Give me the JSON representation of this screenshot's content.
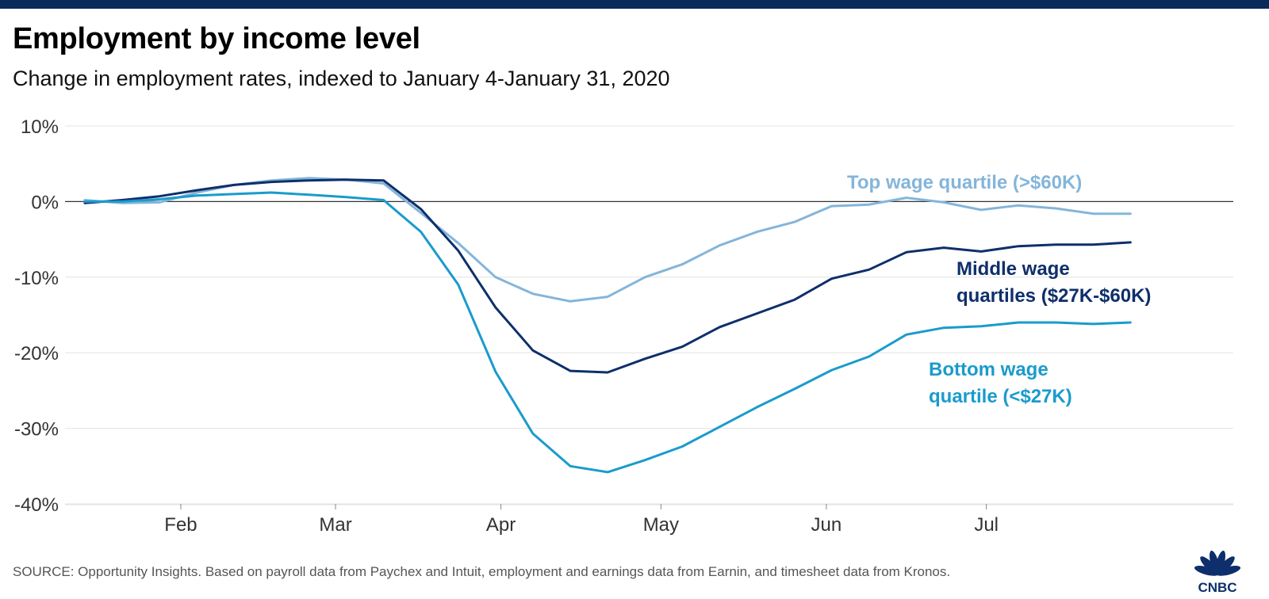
{
  "header": {
    "title": "Employment by income level",
    "subtitle": "Change in employment rates, indexed to January 4-January 31, 2020"
  },
  "footer": {
    "source": "SOURCE: Opportunity Insights. Based on payroll data from Paychex and Intuit, employment and earnings data from Earnin, and timesheet data from Kronos.",
    "logo_text": "CNBC"
  },
  "colors": {
    "top_bar": "#0b2a5c",
    "top_series": "#84b5da",
    "middle_series": "#0e2f6b",
    "bottom_series": "#1a9bcc",
    "grid": "#e3e3e3",
    "zero_line": "#333333"
  },
  "chart_data": {
    "type": "line",
    "title": "Employment by income level",
    "subtitle": "Change in employment rates, indexed to January 4-January 31, 2020",
    "xlabel": "",
    "ylabel": "",
    "x_tick_labels": [
      "Feb",
      "Mar",
      "Apr",
      "May",
      "Jun",
      "Jul"
    ],
    "x_tick_dates": [
      "2020-02-01",
      "2020-03-01",
      "2020-04-01",
      "2020-05-01",
      "2020-06-01",
      "2020-07-01"
    ],
    "xlim": [
      "2020-01-10",
      "2020-08-20"
    ],
    "y_tick_labels": [
      "10%",
      "0%",
      "-10%",
      "-20%",
      "-30%",
      "-40%"
    ],
    "y_ticks": [
      10,
      0,
      -10,
      -20,
      -30,
      -40
    ],
    "ylim": [
      -40,
      10
    ],
    "grid": true,
    "series": [
      {
        "name": "Top wage quartile (>$60K)",
        "label_lines": [
          "Top wage quartile (>$60K)"
        ],
        "color": "#84b5da",
        "x": [
          "2020-01-14",
          "2020-01-21",
          "2020-01-28",
          "2020-02-04",
          "2020-02-11",
          "2020-02-18",
          "2020-02-25",
          "2020-03-03",
          "2020-03-10",
          "2020-03-17",
          "2020-03-24",
          "2020-03-31",
          "2020-04-07",
          "2020-04-14",
          "2020-04-21",
          "2020-04-28",
          "2020-05-05",
          "2020-05-12",
          "2020-05-19",
          "2020-05-26",
          "2020-06-02",
          "2020-06-09",
          "2020-06-16",
          "2020-06-23",
          "2020-06-30",
          "2020-07-07",
          "2020-07-14",
          "2020-07-21",
          "2020-07-28"
        ],
        "y": [
          0.2,
          -0.2,
          -0.1,
          1.2,
          2.2,
          2.8,
          3.1,
          2.9,
          2.4,
          -1.5,
          -5.5,
          -10,
          -12.2,
          -13.2,
          -12.6,
          -10,
          -8.3,
          -5.8,
          -4,
          -2.7,
          -0.6,
          -0.4,
          0.5,
          -0.1,
          -1.1,
          -0.5,
          -0.9,
          -1.6,
          -1.6
        ]
      },
      {
        "name": "Middle wage quartiles ($27K-$60K)",
        "label_lines": [
          "Middle wage",
          "quartiles ($27K-$60K)"
        ],
        "color": "#0e2f6b",
        "x": [
          "2020-01-14",
          "2020-01-21",
          "2020-01-28",
          "2020-02-04",
          "2020-02-11",
          "2020-02-18",
          "2020-02-25",
          "2020-03-03",
          "2020-03-10",
          "2020-03-17",
          "2020-03-24",
          "2020-03-31",
          "2020-04-07",
          "2020-04-14",
          "2020-04-21",
          "2020-04-28",
          "2020-05-05",
          "2020-05-12",
          "2020-05-19",
          "2020-05-26",
          "2020-06-02",
          "2020-06-09",
          "2020-06-16",
          "2020-06-23",
          "2020-06-30",
          "2020-07-07",
          "2020-07-14",
          "2020-07-21",
          "2020-07-28"
        ],
        "y": [
          -0.2,
          0.2,
          0.7,
          1.5,
          2.2,
          2.6,
          2.8,
          2.9,
          2.8,
          -1,
          -6.5,
          -14,
          -19.7,
          -22.4,
          -22.6,
          -20.8,
          -19.2,
          -16.6,
          -14.8,
          -13,
          -10.2,
          -9,
          -6.7,
          -6.1,
          -6.6,
          -5.9,
          -5.7,
          -5.7,
          -5.4
        ]
      },
      {
        "name": "Bottom wage quartile (<$27K)",
        "label_lines": [
          "Bottom wage",
          "quartile (<$27K)"
        ],
        "color": "#1a9bcc",
        "x": [
          "2020-01-14",
          "2020-01-21",
          "2020-01-28",
          "2020-02-04",
          "2020-02-11",
          "2020-02-18",
          "2020-02-25",
          "2020-03-03",
          "2020-03-10",
          "2020-03-17",
          "2020-03-24",
          "2020-03-31",
          "2020-04-07",
          "2020-04-14",
          "2020-04-21",
          "2020-04-28",
          "2020-05-05",
          "2020-05-12",
          "2020-05-19",
          "2020-05-26",
          "2020-06-02",
          "2020-06-09",
          "2020-06-16",
          "2020-06-23",
          "2020-06-30",
          "2020-07-07",
          "2020-07-14",
          "2020-07-21",
          "2020-07-28"
        ],
        "y": [
          0,
          0,
          0.3,
          0.8,
          1,
          1.2,
          0.9,
          0.6,
          0.2,
          -4,
          -11,
          -22.5,
          -30.7,
          -35,
          -35.8,
          -34.2,
          -32.4,
          -29.8,
          -27.2,
          -24.8,
          -22.3,
          -20.5,
          -17.6,
          -16.7,
          -16.5,
          -16,
          -16,
          -16.2,
          -16
        ]
      }
    ],
    "legend": "inline labels at right of chart"
  }
}
